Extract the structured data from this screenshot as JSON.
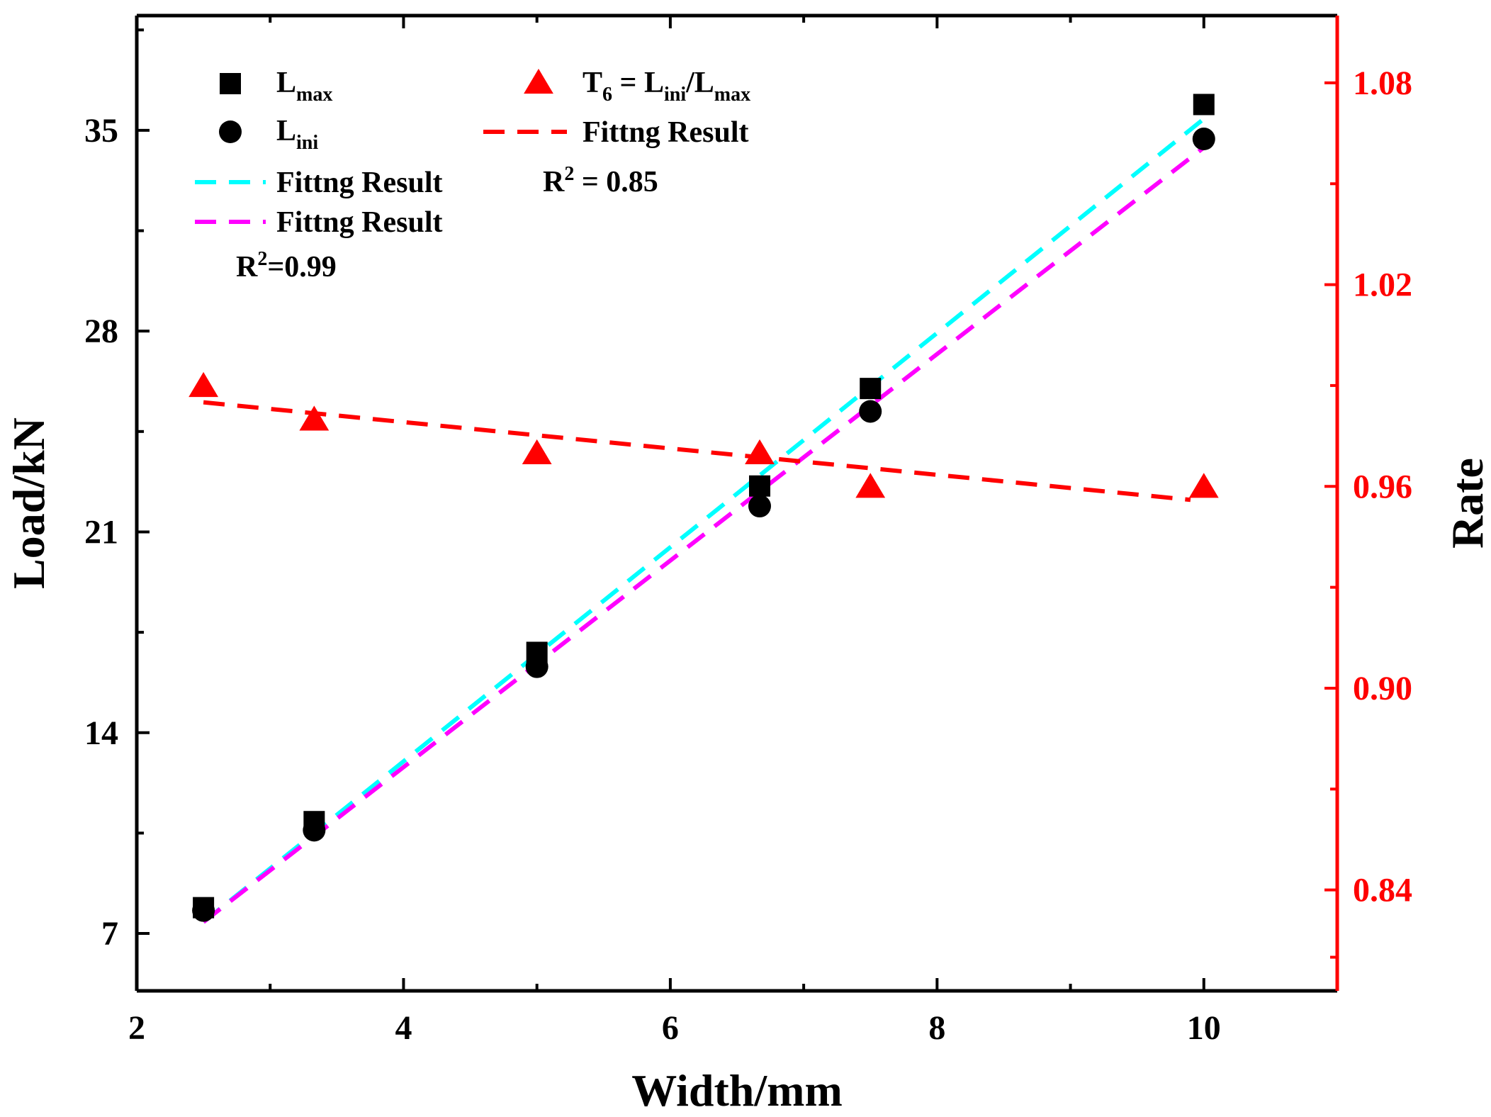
{
  "chart_data": {
    "type": "scatter",
    "xlabel": "Width/mm",
    "ylabel": "Load/kN",
    "y2label": "Rate",
    "xlim": [
      2,
      11
    ],
    "ylim": [
      5,
      39
    ],
    "y2lim": [
      0.81,
      1.1
    ],
    "xticks": [
      "2",
      "4",
      "6",
      "8",
      "10"
    ],
    "yticks": [
      "7",
      "14",
      "21",
      "28",
      "35"
    ],
    "y2ticks": [
      "0.84",
      "0.90",
      "0.96",
      "1.02",
      "1.08"
    ],
    "x_minor_ticks": [
      3,
      5,
      7,
      9
    ],
    "y_minor_ticks": [
      10.5,
      17.5,
      24.5,
      31.5,
      38.5
    ],
    "y2_minor_ticks": [
      0.82,
      0.87,
      0.93,
      0.99,
      1.05
    ],
    "grid": false,
    "legend_position": "top-left",
    "colors": {
      "axis": "#000000",
      "right_axis": "#ff0000",
      "lmax": "#000000",
      "lini": "#000000",
      "t6": "#ff0000",
      "fit_lmax": "#00ffff",
      "fit_lini": "#ff00ff",
      "fit_t6": "#ff0000"
    },
    "series": [
      {
        "name": "Lmax",
        "label_main": "L",
        "label_sub": "max",
        "marker": "square",
        "axis": "left",
        "x": [
          2.5,
          3.33,
          5.0,
          6.67,
          7.5,
          10.0
        ],
        "y": [
          7.9,
          10.9,
          16.8,
          22.6,
          26.0,
          35.9
        ]
      },
      {
        "name": "Lini",
        "label_main": "L",
        "label_sub": "ini",
        "marker": "circle",
        "axis": "left",
        "x": [
          2.5,
          3.33,
          5.0,
          6.67,
          7.5,
          10.0
        ],
        "y": [
          7.8,
          10.6,
          16.3,
          21.9,
          25.2,
          34.7
        ]
      },
      {
        "name": "T6 = Lini/Lmax",
        "label_parts": [
          "T",
          "6",
          " = L",
          "ini",
          "/L",
          "max"
        ],
        "marker": "triangle",
        "axis": "right",
        "x": [
          2.5,
          3.33,
          5.0,
          6.67,
          7.5,
          10.0
        ],
        "y": [
          0.99,
          0.98,
          0.97,
          0.97,
          0.96,
          0.96
        ]
      }
    ],
    "fits": [
      {
        "name": "Fittng Result",
        "for": "Lmax",
        "axis": "left",
        "x": [
          2.5,
          10.0
        ],
        "y": [
          7.4,
          35.4
        ]
      },
      {
        "name": "Fittng Result",
        "for": "Lini",
        "axis": "left",
        "x": [
          2.5,
          10.0
        ],
        "y": [
          7.4,
          34.4
        ]
      },
      {
        "name": "Fittng Result",
        "for": "T6",
        "axis": "right",
        "x": [
          2.5,
          9.9
        ],
        "y": [
          0.985,
          0.956
        ]
      }
    ],
    "annotations": [
      {
        "name": "r2-left",
        "base": "R",
        "sup": "2",
        "rest": "=0.99"
      },
      {
        "name": "r2-right",
        "base": "R",
        "sup": "2",
        "rest": " = 0.85"
      }
    ]
  }
}
